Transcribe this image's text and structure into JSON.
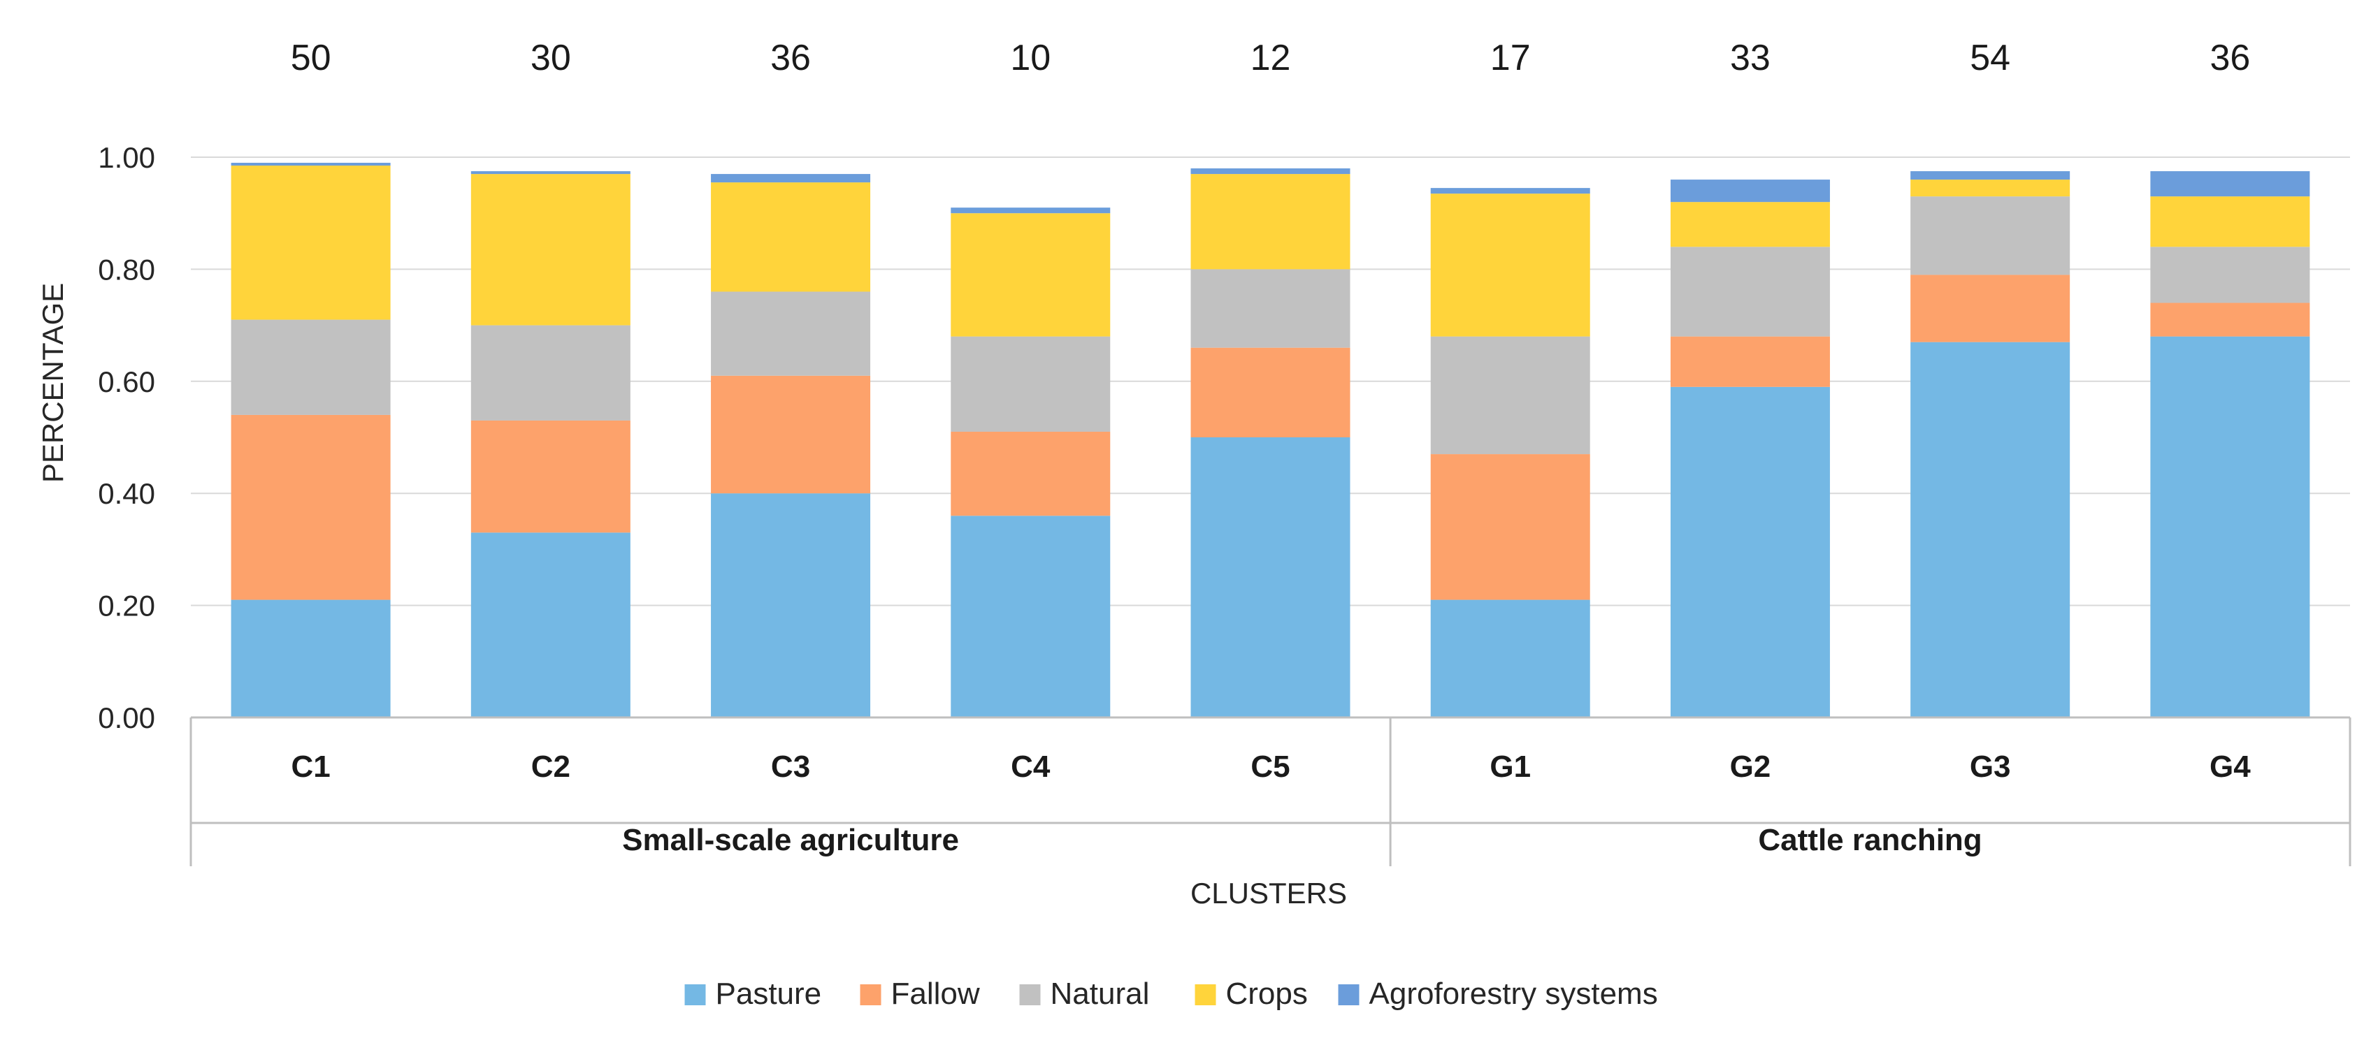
{
  "chart_data": {
    "type": "bar",
    "stacked": true,
    "ylabel": "PERCENTAGE",
    "xlabel": "CLUSTERS",
    "ylim": [
      0,
      1.0
    ],
    "y_ticks": [
      "0.00",
      "0.20",
      "0.40",
      "0.60",
      "0.80",
      "1.00"
    ],
    "y_tick_values": [
      0,
      0.2,
      0.4,
      0.6,
      0.8,
      1.0
    ],
    "grid": true,
    "legend_position": "bottom",
    "categories": [
      "C1",
      "C2",
      "C3",
      "C4",
      "C5",
      "G1",
      "G2",
      "G3",
      "G4"
    ],
    "counts": [
      "50",
      "30",
      "36",
      "10",
      "12",
      "17",
      "33",
      "54",
      "36"
    ],
    "groups": [
      {
        "label": "Small-scale agriculture",
        "start": 0,
        "end": 4
      },
      {
        "label": "Cattle ranching",
        "start": 5,
        "end": 8
      }
    ],
    "series": [
      {
        "name": "Pasture",
        "color": "#74b8e4",
        "values": [
          0.21,
          0.33,
          0.4,
          0.36,
          0.5,
          0.21,
          0.59,
          0.67,
          0.68
        ]
      },
      {
        "name": "Fallow",
        "color": "#fda26b",
        "values": [
          0.33,
          0.2,
          0.21,
          0.15,
          0.16,
          0.26,
          0.09,
          0.12,
          0.06
        ]
      },
      {
        "name": "Natural",
        "color": "#c1c1c1",
        "values": [
          0.17,
          0.17,
          0.15,
          0.17,
          0.14,
          0.21,
          0.16,
          0.14,
          0.1
        ]
      },
      {
        "name": "Crops",
        "color": "#ffd43b",
        "values": [
          0.275,
          0.27,
          0.195,
          0.22,
          0.17,
          0.255,
          0.08,
          0.03,
          0.09
        ]
      },
      {
        "name": "Agroforestry systems",
        "color": "#6b9ddb",
        "values": [
          0.005,
          0.005,
          0.015,
          0.01,
          0.01,
          0.01,
          0.04,
          0.015,
          0.045
        ]
      }
    ]
  }
}
